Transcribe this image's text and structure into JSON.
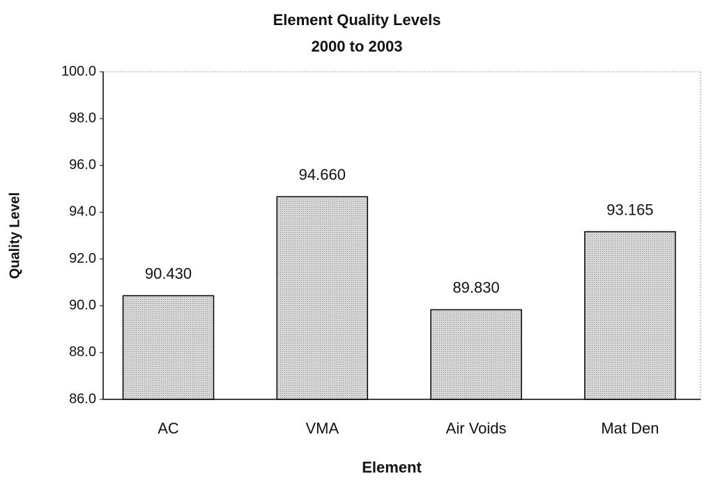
{
  "chart_data": {
    "type": "bar",
    "title": "Element Quality Levels",
    "subtitle": "2000 to 2003",
    "x_label": "Element",
    "y_label": "Quality Level",
    "categories": [
      "AC",
      "VMA",
      "Air Voids",
      "Mat Den"
    ],
    "values": [
      90.43,
      94.66,
      89.83,
      93.165
    ],
    "value_labels": [
      "90.430",
      "94.660",
      "89.830",
      "93.165"
    ],
    "color": "#c8c8c8",
    "ylim": [
      86,
      100
    ],
    "yticks": [
      {
        "value": 86,
        "label": "86.0"
      },
      {
        "value": 88,
        "label": "88.0"
      },
      {
        "value": 90,
        "label": "90.0"
      },
      {
        "value": 92,
        "label": "92.0"
      },
      {
        "value": 94,
        "label": "94.0"
      },
      {
        "value": 96,
        "label": "96.0"
      },
      {
        "value": 98,
        "label": "98.0"
      },
      {
        "value": 100,
        "label": "100.0"
      }
    ],
    "grid": false
  }
}
